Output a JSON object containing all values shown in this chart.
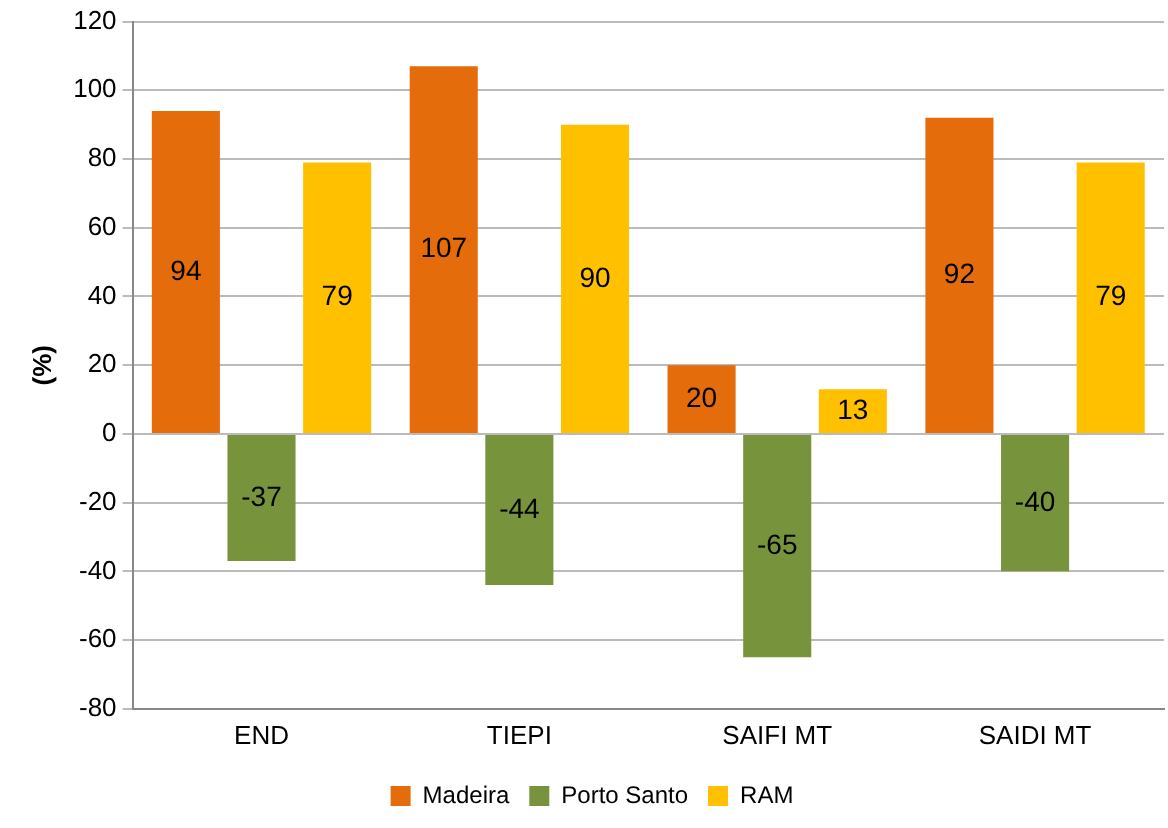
{
  "chart_data": {
    "type": "bar",
    "ylabel": "(%)",
    "categories": [
      "END",
      "TIEPI",
      "SAIFI MT",
      "SAIDI MT"
    ],
    "series": [
      {
        "name": "Madeira",
        "color": "#e46c0a",
        "values": [
          94,
          107,
          20,
          92
        ]
      },
      {
        "name": "Porto Santo",
        "color": "#77933c",
        "values": [
          -37,
          -44,
          -65,
          -40
        ]
      },
      {
        "name": "RAM",
        "color": "#ffc000",
        "values": [
          79,
          90,
          13,
          79
        ]
      }
    ],
    "ylim": [
      -80,
      120
    ],
    "yticks": [
      -80,
      -60,
      -40,
      -20,
      0,
      20,
      40,
      60,
      80,
      100,
      120
    ],
    "grid": "y",
    "legend": "bottom",
    "data_labels": true
  }
}
